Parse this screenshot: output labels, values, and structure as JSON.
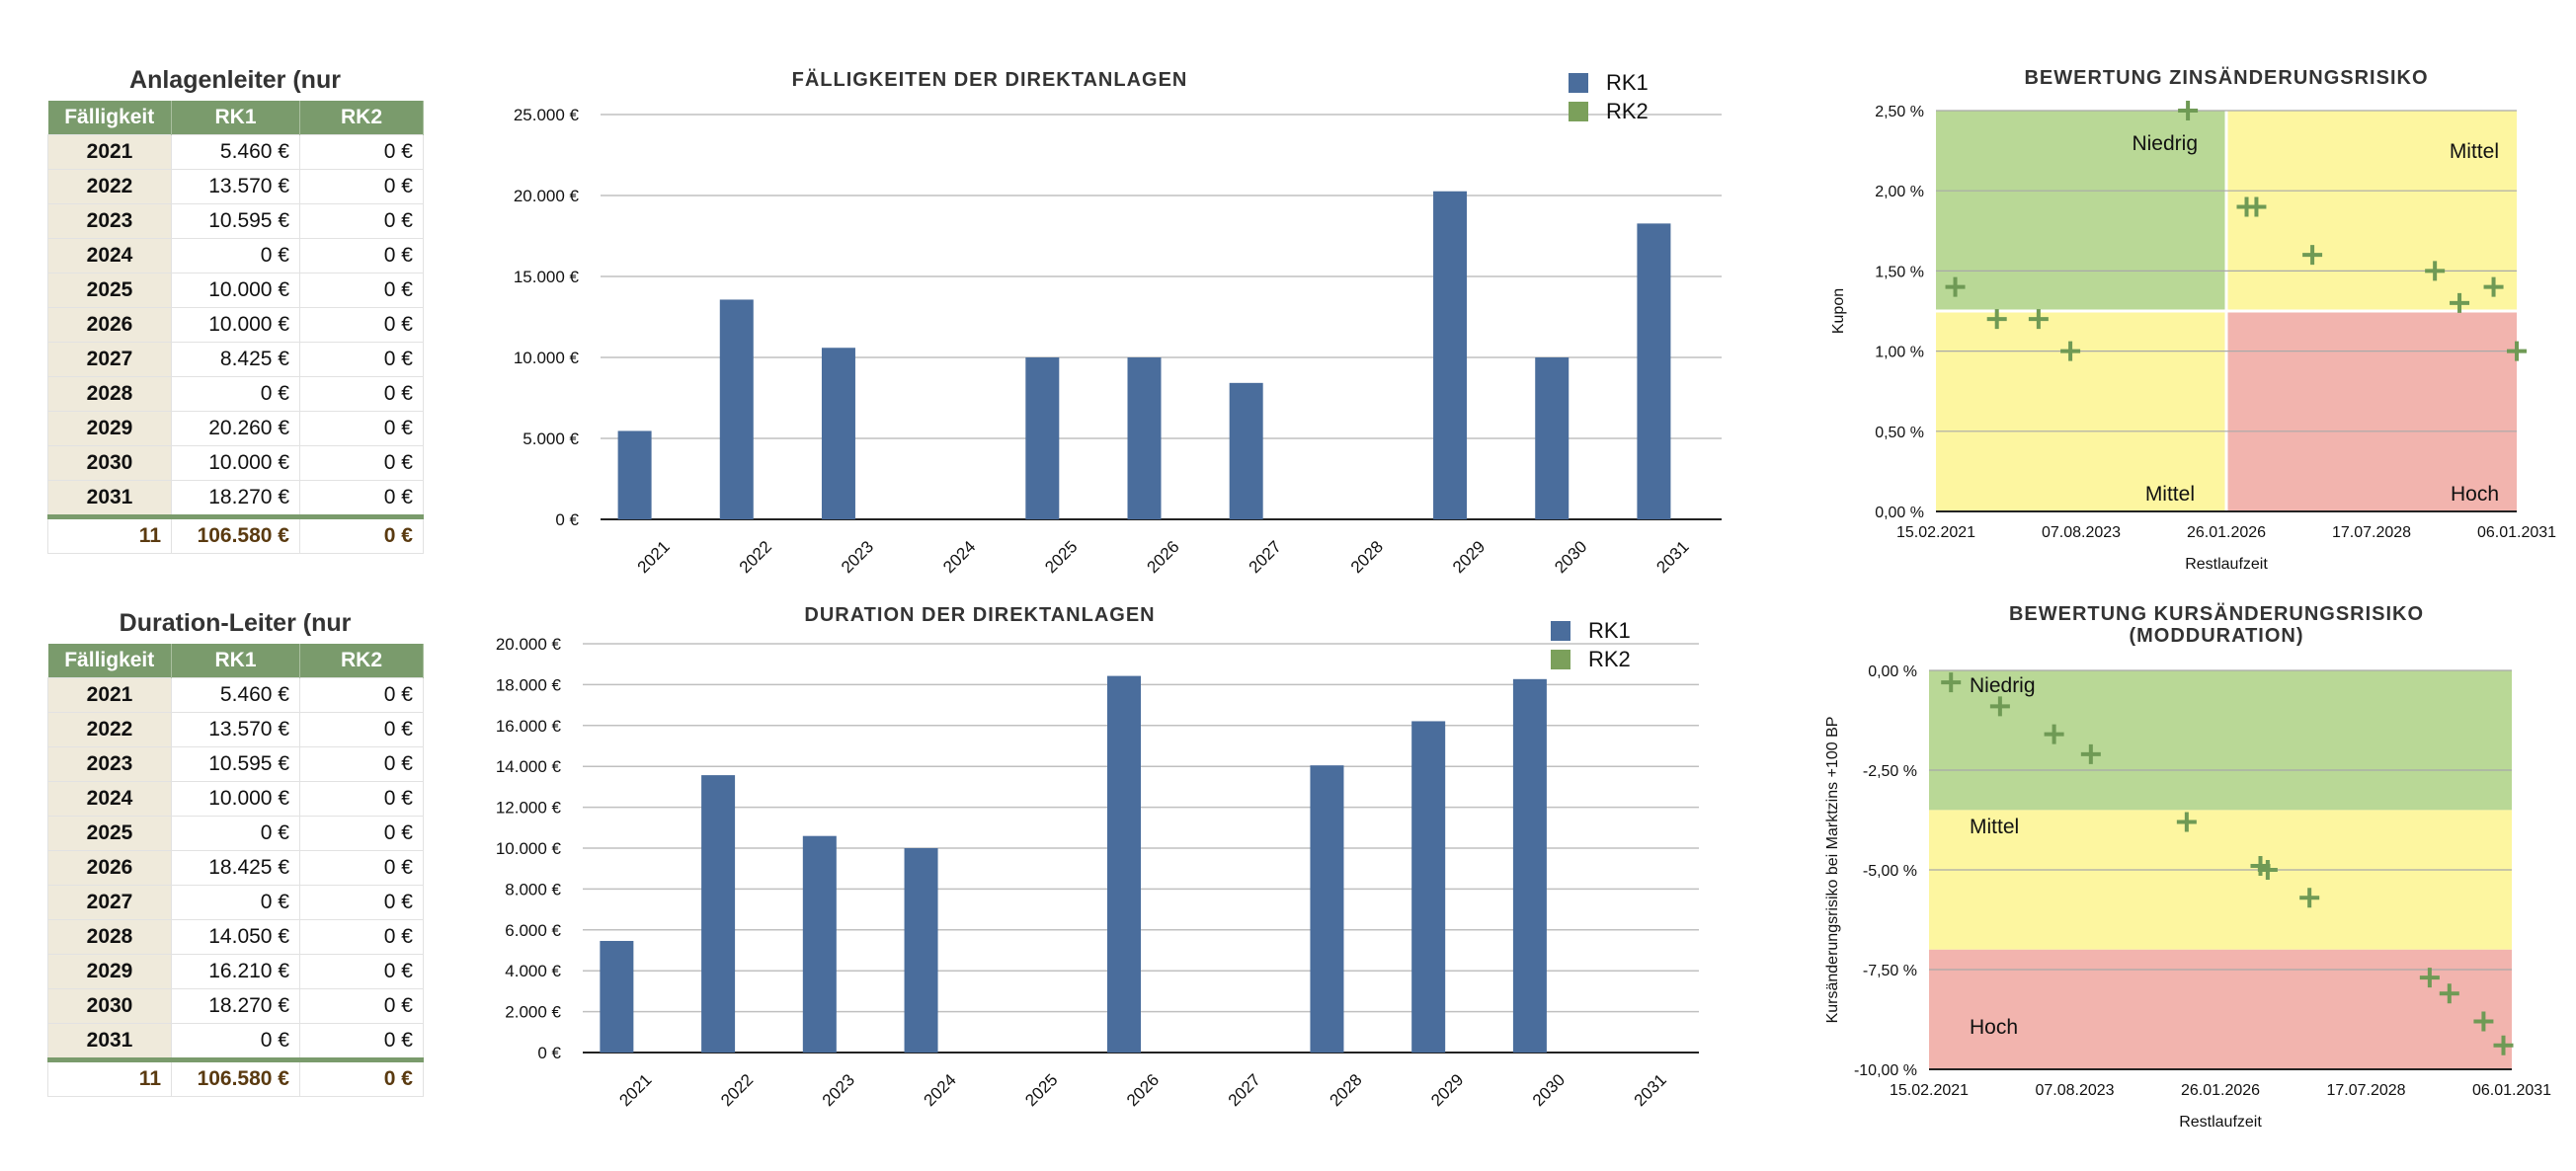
{
  "table1": {
    "title": "Anlagenleiter (nur",
    "headers": [
      "Fälligkeit",
      "RK1",
      "RK2"
    ],
    "rows": [
      [
        "2021",
        "5.460 €",
        "0 €"
      ],
      [
        "2022",
        "13.570 €",
        "0 €"
      ],
      [
        "2023",
        "10.595 €",
        "0 €"
      ],
      [
        "2024",
        "0 €",
        "0 €"
      ],
      [
        "2025",
        "10.000 €",
        "0 €"
      ],
      [
        "2026",
        "10.000 €",
        "0 €"
      ],
      [
        "2027",
        "8.425 €",
        "0 €"
      ],
      [
        "2028",
        "0 €",
        "0 €"
      ],
      [
        "2029",
        "20.260 €",
        "0 €"
      ],
      [
        "2030",
        "10.000 €",
        "0 €"
      ],
      [
        "2031",
        "18.270 €",
        "0 €"
      ]
    ],
    "total": [
      "11",
      "106.580 €",
      "0 €"
    ]
  },
  "table2": {
    "title": "Duration-Leiter (nur",
    "headers": [
      "Fälligkeit",
      "RK1",
      "RK2"
    ],
    "rows": [
      [
        "2021",
        "5.460 €",
        "0 €"
      ],
      [
        "2022",
        "13.570 €",
        "0 €"
      ],
      [
        "2023",
        "10.595 €",
        "0 €"
      ],
      [
        "2024",
        "10.000 €",
        "0 €"
      ],
      [
        "2025",
        "0 €",
        "0 €"
      ],
      [
        "2026",
        "18.425 €",
        "0 €"
      ],
      [
        "2027",
        "0 €",
        "0 €"
      ],
      [
        "2028",
        "14.050 €",
        "0 €"
      ],
      [
        "2029",
        "16.210 €",
        "0 €"
      ],
      [
        "2030",
        "18.270 €",
        "0 €"
      ],
      [
        "2031",
        "0 €",
        "0 €"
      ]
    ],
    "total": [
      "11",
      "106.580 €",
      "0 €"
    ]
  },
  "colors": {
    "rk1": "#4a6d9c",
    "rk2": "#7ba05b",
    "green_zone": "#b9d896",
    "yellow_zone": "#fdf6a0",
    "red_zone": "#f2b4ae",
    "marker": "#6f9a55",
    "table_header": "#7a9b6c"
  },
  "chart_data": [
    {
      "id": "faelligkeiten",
      "type": "bar",
      "title": "FÄLLIGKEITEN DER DIREKTANLAGEN",
      "categories": [
        "2021",
        "2022",
        "2023",
        "2024",
        "2025",
        "2026",
        "2027",
        "2028",
        "2029",
        "2030",
        "2031"
      ],
      "series": [
        {
          "name": "RK1",
          "values": [
            5460,
            13570,
            10595,
            0,
            10000,
            10000,
            8425,
            0,
            20260,
            10000,
            18270
          ]
        },
        {
          "name": "RK2",
          "values": [
            0,
            0,
            0,
            0,
            0,
            0,
            0,
            0,
            0,
            0,
            0
          ]
        }
      ],
      "ylim": [
        0,
        25000
      ],
      "yticks": [
        0,
        5000,
        10000,
        15000,
        20000,
        25000
      ],
      "ytick_labels": [
        "0 €",
        "5.000 €",
        "10.000 €",
        "15.000 €",
        "20.000 €",
        "25.000 €"
      ],
      "grid": true,
      "legend": "top-right"
    },
    {
      "id": "duration",
      "type": "bar",
      "title": "DURATION DER DIREKTANLAGEN",
      "categories": [
        "2021",
        "2022",
        "2023",
        "2024",
        "2025",
        "2026",
        "2027",
        "2028",
        "2029",
        "2030",
        "2031"
      ],
      "series": [
        {
          "name": "RK1",
          "values": [
            5460,
            13570,
            10595,
            10000,
            0,
            18425,
            0,
            14050,
            16210,
            18270,
            0
          ]
        },
        {
          "name": "RK2",
          "values": [
            0,
            0,
            0,
            0,
            0,
            0,
            0,
            0,
            0,
            0,
            0
          ]
        }
      ],
      "ylim": [
        0,
        20000
      ],
      "yticks": [
        0,
        2000,
        4000,
        6000,
        8000,
        10000,
        12000,
        14000,
        16000,
        18000,
        20000
      ],
      "ytick_labels": [
        "0 €",
        "2.000 €",
        "4.000 €",
        "6.000 €",
        "8.000 €",
        "10.000 €",
        "12.000 €",
        "14.000 €",
        "16.000 €",
        "18.000 €",
        "20.000 €"
      ],
      "grid": true,
      "legend": "top-right"
    },
    {
      "id": "zinsaenderungsrisiko",
      "type": "scatter",
      "title": "BEWERTUNG ZINSÄNDERUNGSRISIKO",
      "xlabel": "Restlaufzeit",
      "ylabel": "Kupon",
      "x_type": "date",
      "xlim": [
        "2021-02-15",
        "2031-01-06"
      ],
      "xtick_labels": [
        "15.02.2021",
        "07.08.2023",
        "26.01.2026",
        "17.07.2028",
        "06.01.2031"
      ],
      "ylim": [
        0,
        2.5
      ],
      "ytick_labels": [
        "0,00 %",
        "0,50 %",
        "1,00 %",
        "1,50 %",
        "2,00 %",
        "2,50 %"
      ],
      "zones": [
        {
          "label": "Niedrig",
          "color": "green",
          "x": [
            "2021-02-15",
            "2026-01-26"
          ],
          "y": [
            1.25,
            2.5
          ]
        },
        {
          "label": "Mittel",
          "color": "yellow",
          "x": [
            "2026-01-26",
            "2031-01-06"
          ],
          "y": [
            1.25,
            2.5
          ]
        },
        {
          "label": "Mittel",
          "color": "yellow",
          "x": [
            "2021-02-15",
            "2026-01-26"
          ],
          "y": [
            0,
            1.25
          ]
        },
        {
          "label": "Hoch",
          "color": "red",
          "x": [
            "2026-01-26",
            "2031-01-06"
          ],
          "y": [
            0,
            1.25
          ]
        }
      ],
      "points": [
        {
          "x": "2021-06-15",
          "y": 1.4
        },
        {
          "x": "2022-03-01",
          "y": 1.2
        },
        {
          "x": "2022-11-15",
          "y": 1.2
        },
        {
          "x": "2023-06-01",
          "y": 1.0
        },
        {
          "x": "2025-06-01",
          "y": 2.5
        },
        {
          "x": "2026-06-01",
          "y": 1.9
        },
        {
          "x": "2026-08-01",
          "y": 1.9
        },
        {
          "x": "2027-07-15",
          "y": 1.6
        },
        {
          "x": "2029-08-15",
          "y": 1.5
        },
        {
          "x": "2030-01-15",
          "y": 1.3
        },
        {
          "x": "2030-08-15",
          "y": 1.4
        },
        {
          "x": "2031-01-06",
          "y": 1.0
        }
      ],
      "grid": true
    },
    {
      "id": "kursaenderungsrisiko",
      "type": "scatter",
      "title": "BEWERTUNG KURSÄNDERUNGSRISIKO",
      "subtitle": "(MODDURATION)",
      "xlabel": "Restlaufzeit",
      "ylabel": "Kursänderungsrisiko bei Marktzins +100 BP",
      "x_type": "date",
      "xlim": [
        "2021-02-15",
        "2031-01-06"
      ],
      "xtick_labels": [
        "15.02.2021",
        "07.08.2023",
        "26.01.2026",
        "17.07.2028",
        "06.01.2031"
      ],
      "ylim": [
        -10,
        0
      ],
      "ytick_labels": [
        "-10,00 %",
        "-7,50 %",
        "-5,00 %",
        "-2,50 %",
        "0,00 %"
      ],
      "zones": [
        {
          "label": "Niedrig",
          "color": "green",
          "y": [
            -3.5,
            0
          ]
        },
        {
          "label": "Mittel",
          "color": "yellow",
          "y": [
            -7,
            -3.5
          ]
        },
        {
          "label": "Hoch",
          "color": "red",
          "y": [
            -10,
            -7
          ]
        }
      ],
      "points": [
        {
          "x": "2021-07-01",
          "y": -0.3
        },
        {
          "x": "2022-05-01",
          "y": -0.9
        },
        {
          "x": "2023-04-01",
          "y": -1.6
        },
        {
          "x": "2023-11-15",
          "y": -2.1
        },
        {
          "x": "2025-07-01",
          "y": -3.8
        },
        {
          "x": "2026-10-01",
          "y": -4.9
        },
        {
          "x": "2026-11-15",
          "y": -5.0
        },
        {
          "x": "2027-08-01",
          "y": -5.7
        },
        {
          "x": "2029-08-15",
          "y": -7.7
        },
        {
          "x": "2029-12-15",
          "y": -8.1
        },
        {
          "x": "2030-07-15",
          "y": -8.8
        },
        {
          "x": "2030-11-15",
          "y": -9.4
        }
      ],
      "grid": true
    }
  ]
}
